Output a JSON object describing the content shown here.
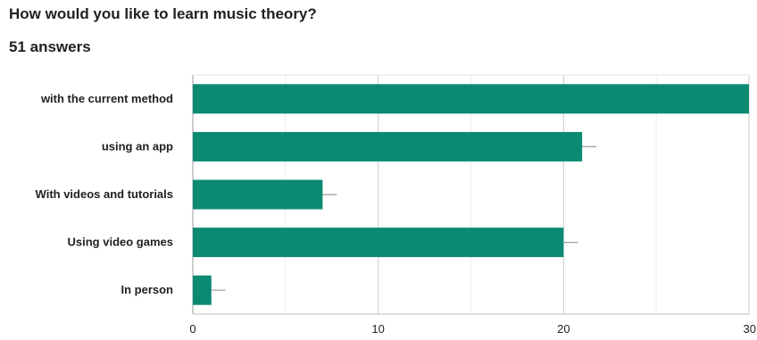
{
  "question": "How would you like to learn music theory?",
  "answers": "51 answers",
  "chart_data": {
    "type": "bar",
    "orientation": "horizontal",
    "categories": [
      "with the current method",
      "using an  app",
      "With videos and tutorials",
      "Using video games",
      "In person"
    ],
    "values": [
      30,
      21,
      7,
      20,
      1
    ],
    "xlim": [
      0,
      30
    ],
    "xticks": [
      0,
      10,
      20,
      30
    ],
    "bar_color": "#0b8a72",
    "grid": true,
    "legend": "none"
  }
}
